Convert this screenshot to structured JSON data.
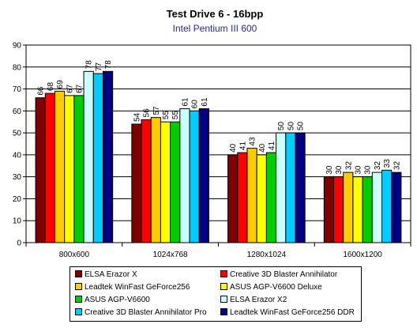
{
  "chart_data": {
    "type": "bar",
    "title": "Test Drive 6 - 16bpp",
    "subtitle": "Intel Pentium III 600",
    "categories": [
      "800x600",
      "1024x768",
      "1280x1024",
      "1600x1200"
    ],
    "ylim": [
      0,
      90
    ],
    "yticks": [
      0,
      10,
      20,
      30,
      40,
      50,
      60,
      70,
      80,
      90
    ],
    "grid": true,
    "legend_position": "bottom",
    "series": [
      {
        "name": "ELSA Erazor X",
        "color": "#800000",
        "values": [
          66,
          54,
          40,
          30
        ]
      },
      {
        "name": "Creative 3D Blaster Annihilator",
        "color": "#ff0000",
        "values": [
          68,
          56,
          41,
          30
        ]
      },
      {
        "name": "Leadtek WinFast GeForce256",
        "color": "#ffcc00",
        "values": [
          69,
          57,
          43,
          32
        ]
      },
      {
        "name": "ASUS AGP-V6600 Deluxe",
        "color": "#ffff00",
        "values": [
          67,
          55,
          40,
          30
        ]
      },
      {
        "name": "ASUS AGP-V6600",
        "color": "#00cc00",
        "values": [
          67,
          55,
          41,
          30
        ]
      },
      {
        "name": "ELSA Erazor X2",
        "color": "#ccffff",
        "values": [
          78,
          61,
          50,
          32
        ]
      },
      {
        "name": "Creative 3D Blaster Annihilator Pro",
        "color": "#00ccff",
        "values": [
          77,
          60,
          50,
          33
        ]
      },
      {
        "name": "Leadtek WinFast GeForce256 DDR",
        "color": "#000080",
        "values": [
          78,
          61,
          50,
          32
        ]
      }
    ]
  }
}
